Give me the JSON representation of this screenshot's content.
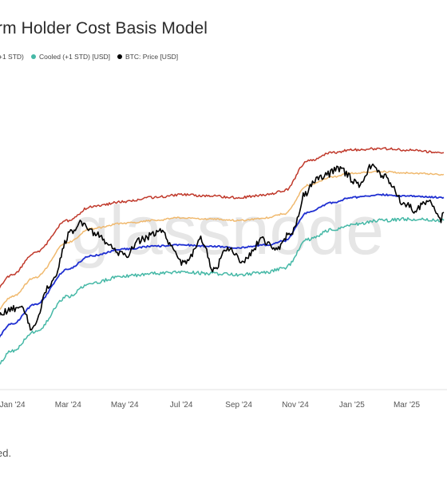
{
  "chart_data": {
    "type": "line",
    "title": "rm Holder Cost Basis Model",
    "x_ticks": [
      "Jan '24",
      "Mar '24",
      "May '24",
      "Jul '24",
      "Sep '24",
      "Nov '24",
      "Jan '25",
      "Mar '25"
    ],
    "x_range": [
      "2023-12-10",
      "2025-04-10"
    ],
    "grid": false,
    "legend_position": "top-left",
    "watermark": "glassnode",
    "series": [
      {
        "name": "",
        "legend_label": "+1 STD)",
        "color": "#c0392b",
        "x": [
          "2023-12-10",
          "2024-01-01",
          "2024-01-25",
          "2024-03-01",
          "2024-03-25",
          "2024-05-01",
          "2024-06-01",
          "2024-07-01",
          "2024-08-01",
          "2024-09-01",
          "2024-10-01",
          "2024-10-20",
          "2024-11-15",
          "2024-12-10",
          "2025-01-01",
          "2025-02-01",
          "2025-03-01",
          "2025-04-10"
        ],
        "values": [
          0.3,
          0.37,
          0.45,
          0.57,
          0.62,
          0.64,
          0.655,
          0.665,
          0.66,
          0.655,
          0.665,
          0.68,
          0.79,
          0.82,
          0.83,
          0.835,
          0.83,
          0.82
        ]
      },
      {
        "name": "",
        "legend_label": "",
        "color": "#f0b96e",
        "x": [
          "2023-12-10",
          "2024-01-01",
          "2024-01-25",
          "2024-03-01",
          "2024-03-25",
          "2024-05-01",
          "2024-06-01",
          "2024-07-01",
          "2024-08-01",
          "2024-09-01",
          "2024-10-01",
          "2024-10-20",
          "2024-11-15",
          "2024-12-10",
          "2025-01-01",
          "2025-02-01",
          "2025-03-01",
          "2025-04-10"
        ],
        "values": [
          0.22,
          0.29,
          0.36,
          0.49,
          0.54,
          0.56,
          0.57,
          0.58,
          0.575,
          0.57,
          0.58,
          0.595,
          0.7,
          0.73,
          0.745,
          0.75,
          0.745,
          0.74
        ]
      },
      {
        "name": "",
        "legend_label": "",
        "color": "#1f2fd1",
        "x": [
          "2023-12-10",
          "2024-01-01",
          "2024-01-25",
          "2024-03-01",
          "2024-03-25",
          "2024-05-01",
          "2024-06-01",
          "2024-07-01",
          "2024-08-01",
          "2024-09-01",
          "2024-10-01",
          "2024-10-20",
          "2024-11-15",
          "2024-12-10",
          "2025-01-01",
          "2025-02-01",
          "2025-03-01",
          "2025-04-10"
        ],
        "values": [
          0.12,
          0.19,
          0.26,
          0.39,
          0.44,
          0.465,
          0.475,
          0.48,
          0.475,
          0.47,
          0.48,
          0.495,
          0.6,
          0.635,
          0.655,
          0.665,
          0.66,
          0.655
        ]
      },
      {
        "name": "Cooled (+1 STD) [USD]",
        "color": "#45b8a6",
        "x": [
          "2023-12-10",
          "2024-01-01",
          "2024-01-25",
          "2024-03-01",
          "2024-03-25",
          "2024-05-01",
          "2024-06-01",
          "2024-07-01",
          "2024-08-01",
          "2024-09-01",
          "2024-10-01",
          "2024-10-20",
          "2024-11-15",
          "2024-12-10",
          "2025-01-01",
          "2025-02-01",
          "2025-03-01",
          "2025-04-10"
        ],
        "values": [
          0.02,
          0.09,
          0.16,
          0.29,
          0.34,
          0.365,
          0.375,
          0.38,
          0.375,
          0.37,
          0.38,
          0.395,
          0.5,
          0.535,
          0.555,
          0.57,
          0.575,
          0.57
        ]
      },
      {
        "name": "BTC: Price [USD]",
        "color": "#000000",
        "x": [
          "2023-12-10",
          "2024-01-10",
          "2024-01-23",
          "2024-02-10",
          "2024-03-05",
          "2024-03-14",
          "2024-04-01",
          "2024-04-15",
          "2024-05-01",
          "2024-05-20",
          "2024-06-07",
          "2024-07-05",
          "2024-07-22",
          "2024-08-05",
          "2024-08-20",
          "2024-09-06",
          "2024-09-27",
          "2024-10-10",
          "2024-10-29",
          "2024-11-12",
          "2024-11-22",
          "2024-12-05",
          "2024-12-17",
          "2025-01-10",
          "2025-01-21",
          "2025-02-05",
          "2025-02-27",
          "2025-03-10",
          "2025-03-25",
          "2025-04-07",
          "2025-04-10"
        ],
        "values": [
          0.22,
          0.25,
          0.17,
          0.33,
          0.53,
          0.56,
          0.52,
          0.47,
          0.44,
          0.5,
          0.53,
          0.41,
          0.5,
          0.39,
          0.47,
          0.42,
          0.5,
          0.46,
          0.53,
          0.67,
          0.72,
          0.74,
          0.76,
          0.7,
          0.77,
          0.73,
          0.63,
          0.61,
          0.64,
          0.57,
          0.6
        ]
      }
    ]
  }
}
